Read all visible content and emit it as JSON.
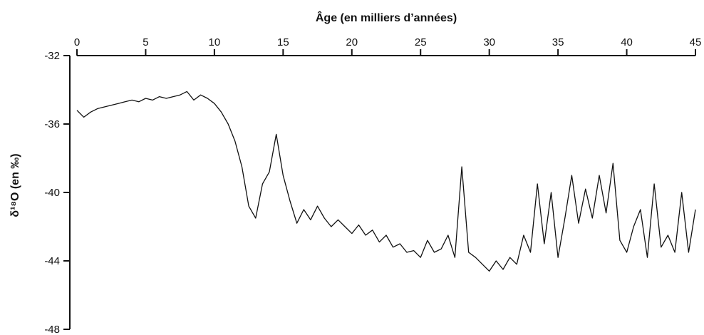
{
  "chart_data": {
    "type": "line",
    "xlabel": "Âge (en milliers d’années)",
    "ylabel": "δ¹⁸O (en ‰)",
    "xlim": [
      0,
      45
    ],
    "ylim": [
      -48,
      -32
    ],
    "x_axis_position": "top",
    "x_ticks": [
      0,
      5,
      10,
      15,
      20,
      25,
      30,
      35,
      40,
      45
    ],
    "y_ticks": [
      -32,
      -36,
      -40,
      -44,
      -48
    ],
    "x_tick_labels": [
      "0",
      "5",
      "10",
      "15",
      "20",
      "25",
      "30",
      "35",
      "40",
      "45"
    ],
    "y_tick_labels": [
      "-32",
      "-36",
      "-40",
      "-44",
      "-48"
    ],
    "grid": false,
    "series": [
      {
        "color": "#111111",
        "x": [
          0,
          0.5,
          1,
          1.5,
          2,
          2.5,
          3,
          3.5,
          4,
          4.5,
          5,
          5.5,
          6,
          6.5,
          7,
          7.5,
          8,
          8.5,
          9,
          9.5,
          10,
          10.5,
          11,
          11.5,
          12,
          12.5,
          13,
          13.5,
          14,
          14.5,
          15,
          15.5,
          16,
          16.5,
          17,
          17.5,
          18,
          18.5,
          19,
          19.5,
          20,
          20.5,
          21,
          21.5,
          22,
          22.5,
          23,
          23.5,
          24,
          24.5,
          25,
          25.5,
          26,
          26.5,
          27,
          27.5,
          28,
          28.5,
          29,
          29.5,
          30,
          30.5,
          31,
          31.5,
          32,
          32.5,
          33,
          33.5,
          34,
          34.5,
          35,
          35.5,
          36,
          36.5,
          37,
          37.5,
          38,
          38.5,
          39,
          39.5,
          40,
          40.5,
          41,
          41.5,
          42,
          42.5,
          43,
          43.5,
          44,
          44.5,
          45
        ],
        "values": [
          -35.2,
          -35.6,
          -35.3,
          -35.1,
          -35.0,
          -34.9,
          -34.8,
          -34.7,
          -34.6,
          -34.7,
          -34.5,
          -34.6,
          -34.4,
          -34.5,
          -34.4,
          -34.3,
          -34.1,
          -34.6,
          -34.3,
          -34.5,
          -34.8,
          -35.3,
          -36.0,
          -37.0,
          -38.5,
          -40.8,
          -41.5,
          -39.5,
          -38.8,
          -36.6,
          -39.0,
          -40.5,
          -41.8,
          -41.0,
          -41.6,
          -40.8,
          -41.5,
          -42.0,
          -41.6,
          -42.0,
          -42.4,
          -41.9,
          -42.5,
          -42.2,
          -42.9,
          -42.5,
          -43.2,
          -43.0,
          -43.5,
          -43.4,
          -43.8,
          -42.8,
          -43.5,
          -43.3,
          -42.5,
          -43.8,
          -38.5,
          -43.5,
          -43.8,
          -44.2,
          -44.6,
          -44.0,
          -44.5,
          -43.8,
          -44.2,
          -42.5,
          -43.5,
          -39.5,
          -43.0,
          -40.0,
          -43.8,
          -41.5,
          -39.0,
          -41.8,
          -39.8,
          -41.5,
          -39.0,
          -41.2,
          -38.3,
          -42.8,
          -43.5,
          -42.0,
          -41.0,
          -43.8,
          -39.5,
          -43.2,
          -42.5,
          -43.5,
          -40.0,
          -43.5,
          -41.0
        ]
      }
    ]
  }
}
